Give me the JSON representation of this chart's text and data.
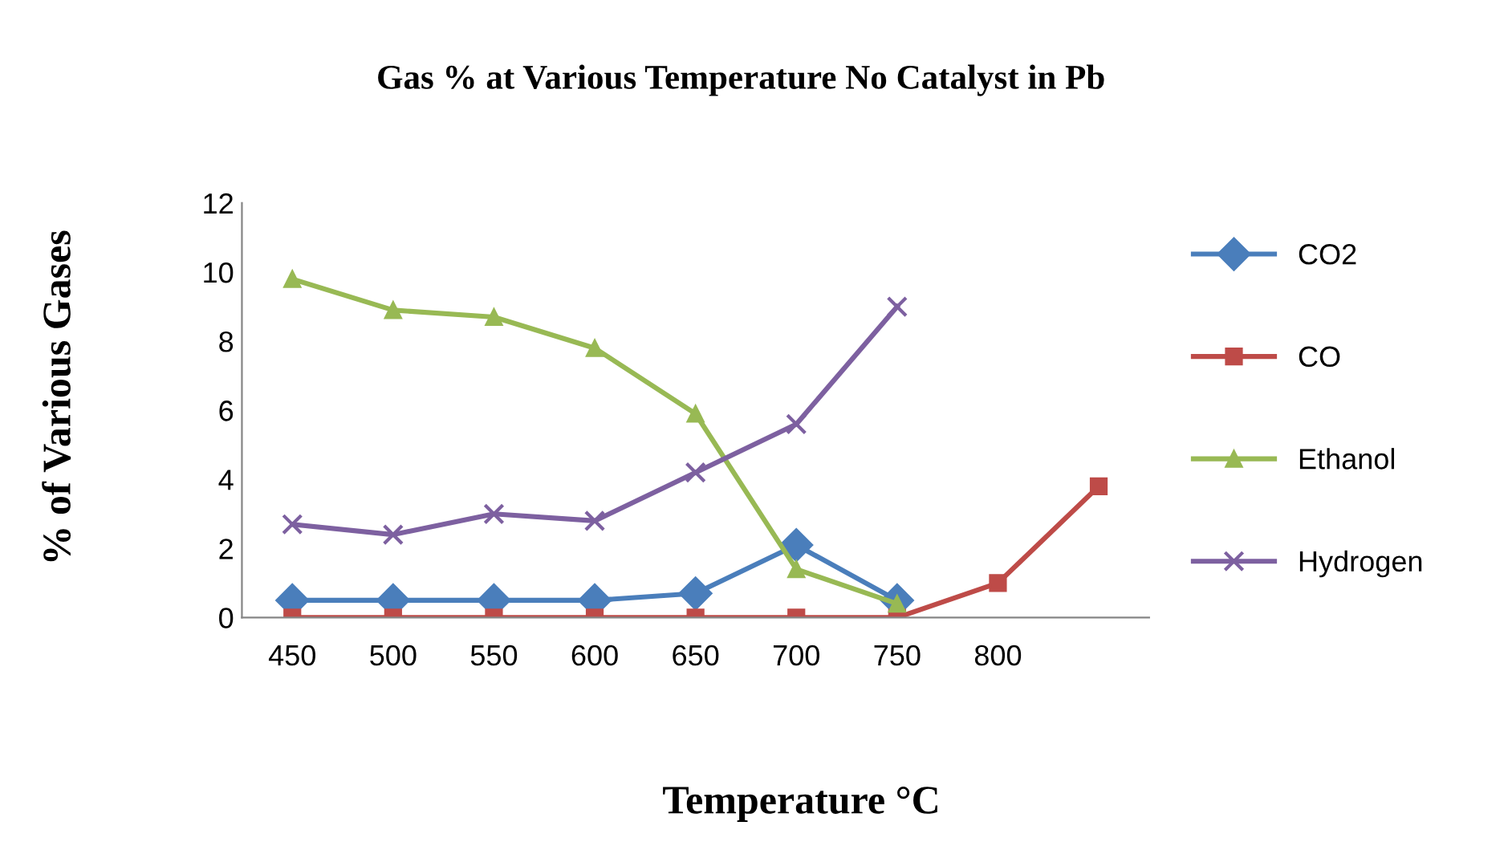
{
  "chart_data": {
    "type": "line",
    "title": "Gas % at Various Temperature No Catalyst in Pb",
    "xlabel": "Temperature °C",
    "ylabel": "% of Various Gases",
    "categories": [
      "450",
      "500",
      "550",
      "600",
      "650",
      "700",
      "750",
      "800",
      null
    ],
    "ylim": [
      0,
      12
    ],
    "yticks": [
      0,
      2,
      4,
      6,
      8,
      10,
      12
    ],
    "grid": false,
    "legend": "right",
    "series": [
      {
        "name": "CO2",
        "color": "#4a7ebb",
        "marker": "diamond",
        "values": [
          0.5,
          0.5,
          0.5,
          0.5,
          0.7,
          2.1,
          0.5,
          null,
          null
        ]
      },
      {
        "name": "CO",
        "color": "#be4b48",
        "marker": "square",
        "values": [
          0,
          0,
          0,
          0,
          0,
          0,
          0,
          1.0,
          3.8
        ]
      },
      {
        "name": "Ethanol",
        "color": "#98b954",
        "marker": "triangle",
        "values": [
          9.8,
          8.9,
          8.7,
          7.8,
          5.9,
          1.4,
          0.4,
          null,
          null
        ]
      },
      {
        "name": "Hydrogen",
        "color": "#7d60a0",
        "marker": "cross",
        "values": [
          2.7,
          2.4,
          3.0,
          2.8,
          4.2,
          5.6,
          9.0,
          null,
          null
        ]
      }
    ]
  }
}
